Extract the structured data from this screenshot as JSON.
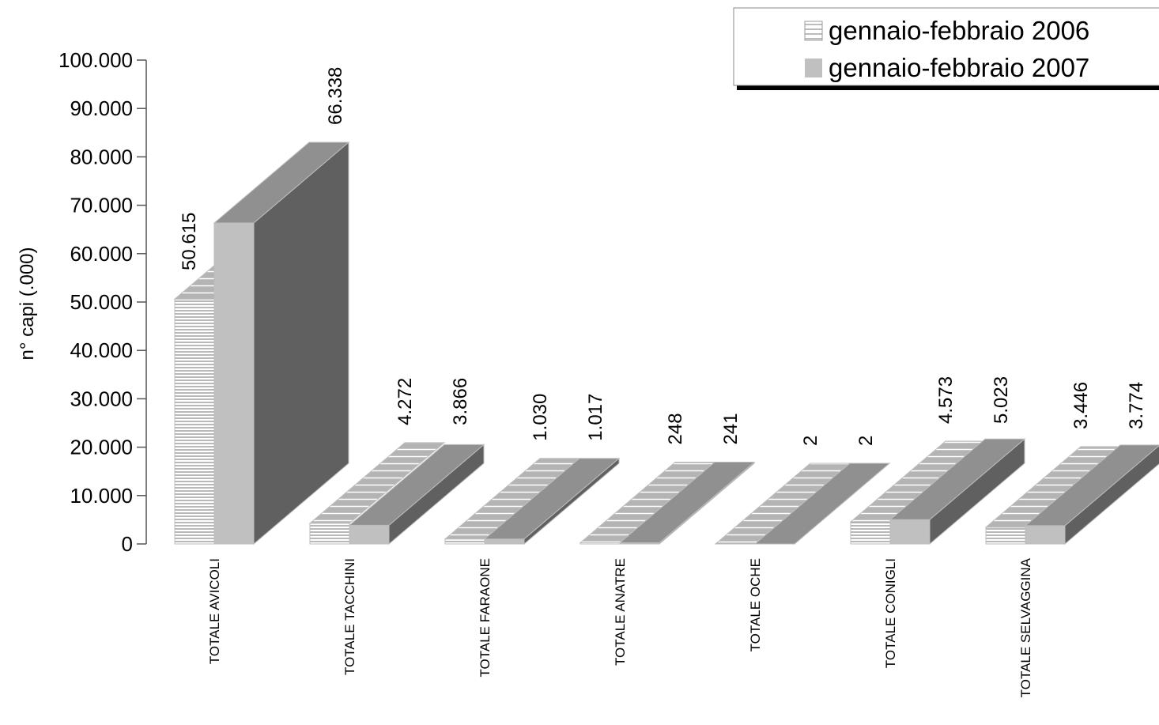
{
  "chart_data": {
    "type": "bar",
    "ylabel": "n° capi (.000)",
    "ylim": [
      0,
      100000
    ],
    "yticks": [
      "0",
      "10.000",
      "20.000",
      "30.000",
      "40.000",
      "50.000",
      "60.000",
      "70.000",
      "80.000",
      "90.000",
      "100.000"
    ],
    "categories": [
      "TOTALE AVICOLI",
      "TOTALE TACCHINI",
      "TOTALE FARAONE",
      "TOTALE ANATRE",
      "TOTALE OCHE",
      "TOTALE CONIGLI",
      "TOTALE SELVAGGINA"
    ],
    "series": [
      {
        "name": "gennaio-febbraio 2006",
        "values": [
          50615,
          4272,
          1030,
          248,
          2,
          4573,
          3446
        ],
        "labels": [
          "50.615",
          "4.272",
          "1.030",
          "248",
          "2",
          "4.573",
          "3.446"
        ],
        "color": "#ffffff",
        "pattern": "horizontal-stripes"
      },
      {
        "name": "gennaio-febbraio 2007",
        "values": [
          66338,
          3866,
          1017,
          241,
          2,
          5023,
          3774
        ],
        "labels": [
          "66.338",
          "3.866",
          "1.017",
          "241",
          "2",
          "5.023",
          "3.774"
        ],
        "color": "#c0c0c0",
        "pattern": "solid"
      }
    ],
    "legend": {
      "position": "top-right"
    },
    "grid": false
  }
}
